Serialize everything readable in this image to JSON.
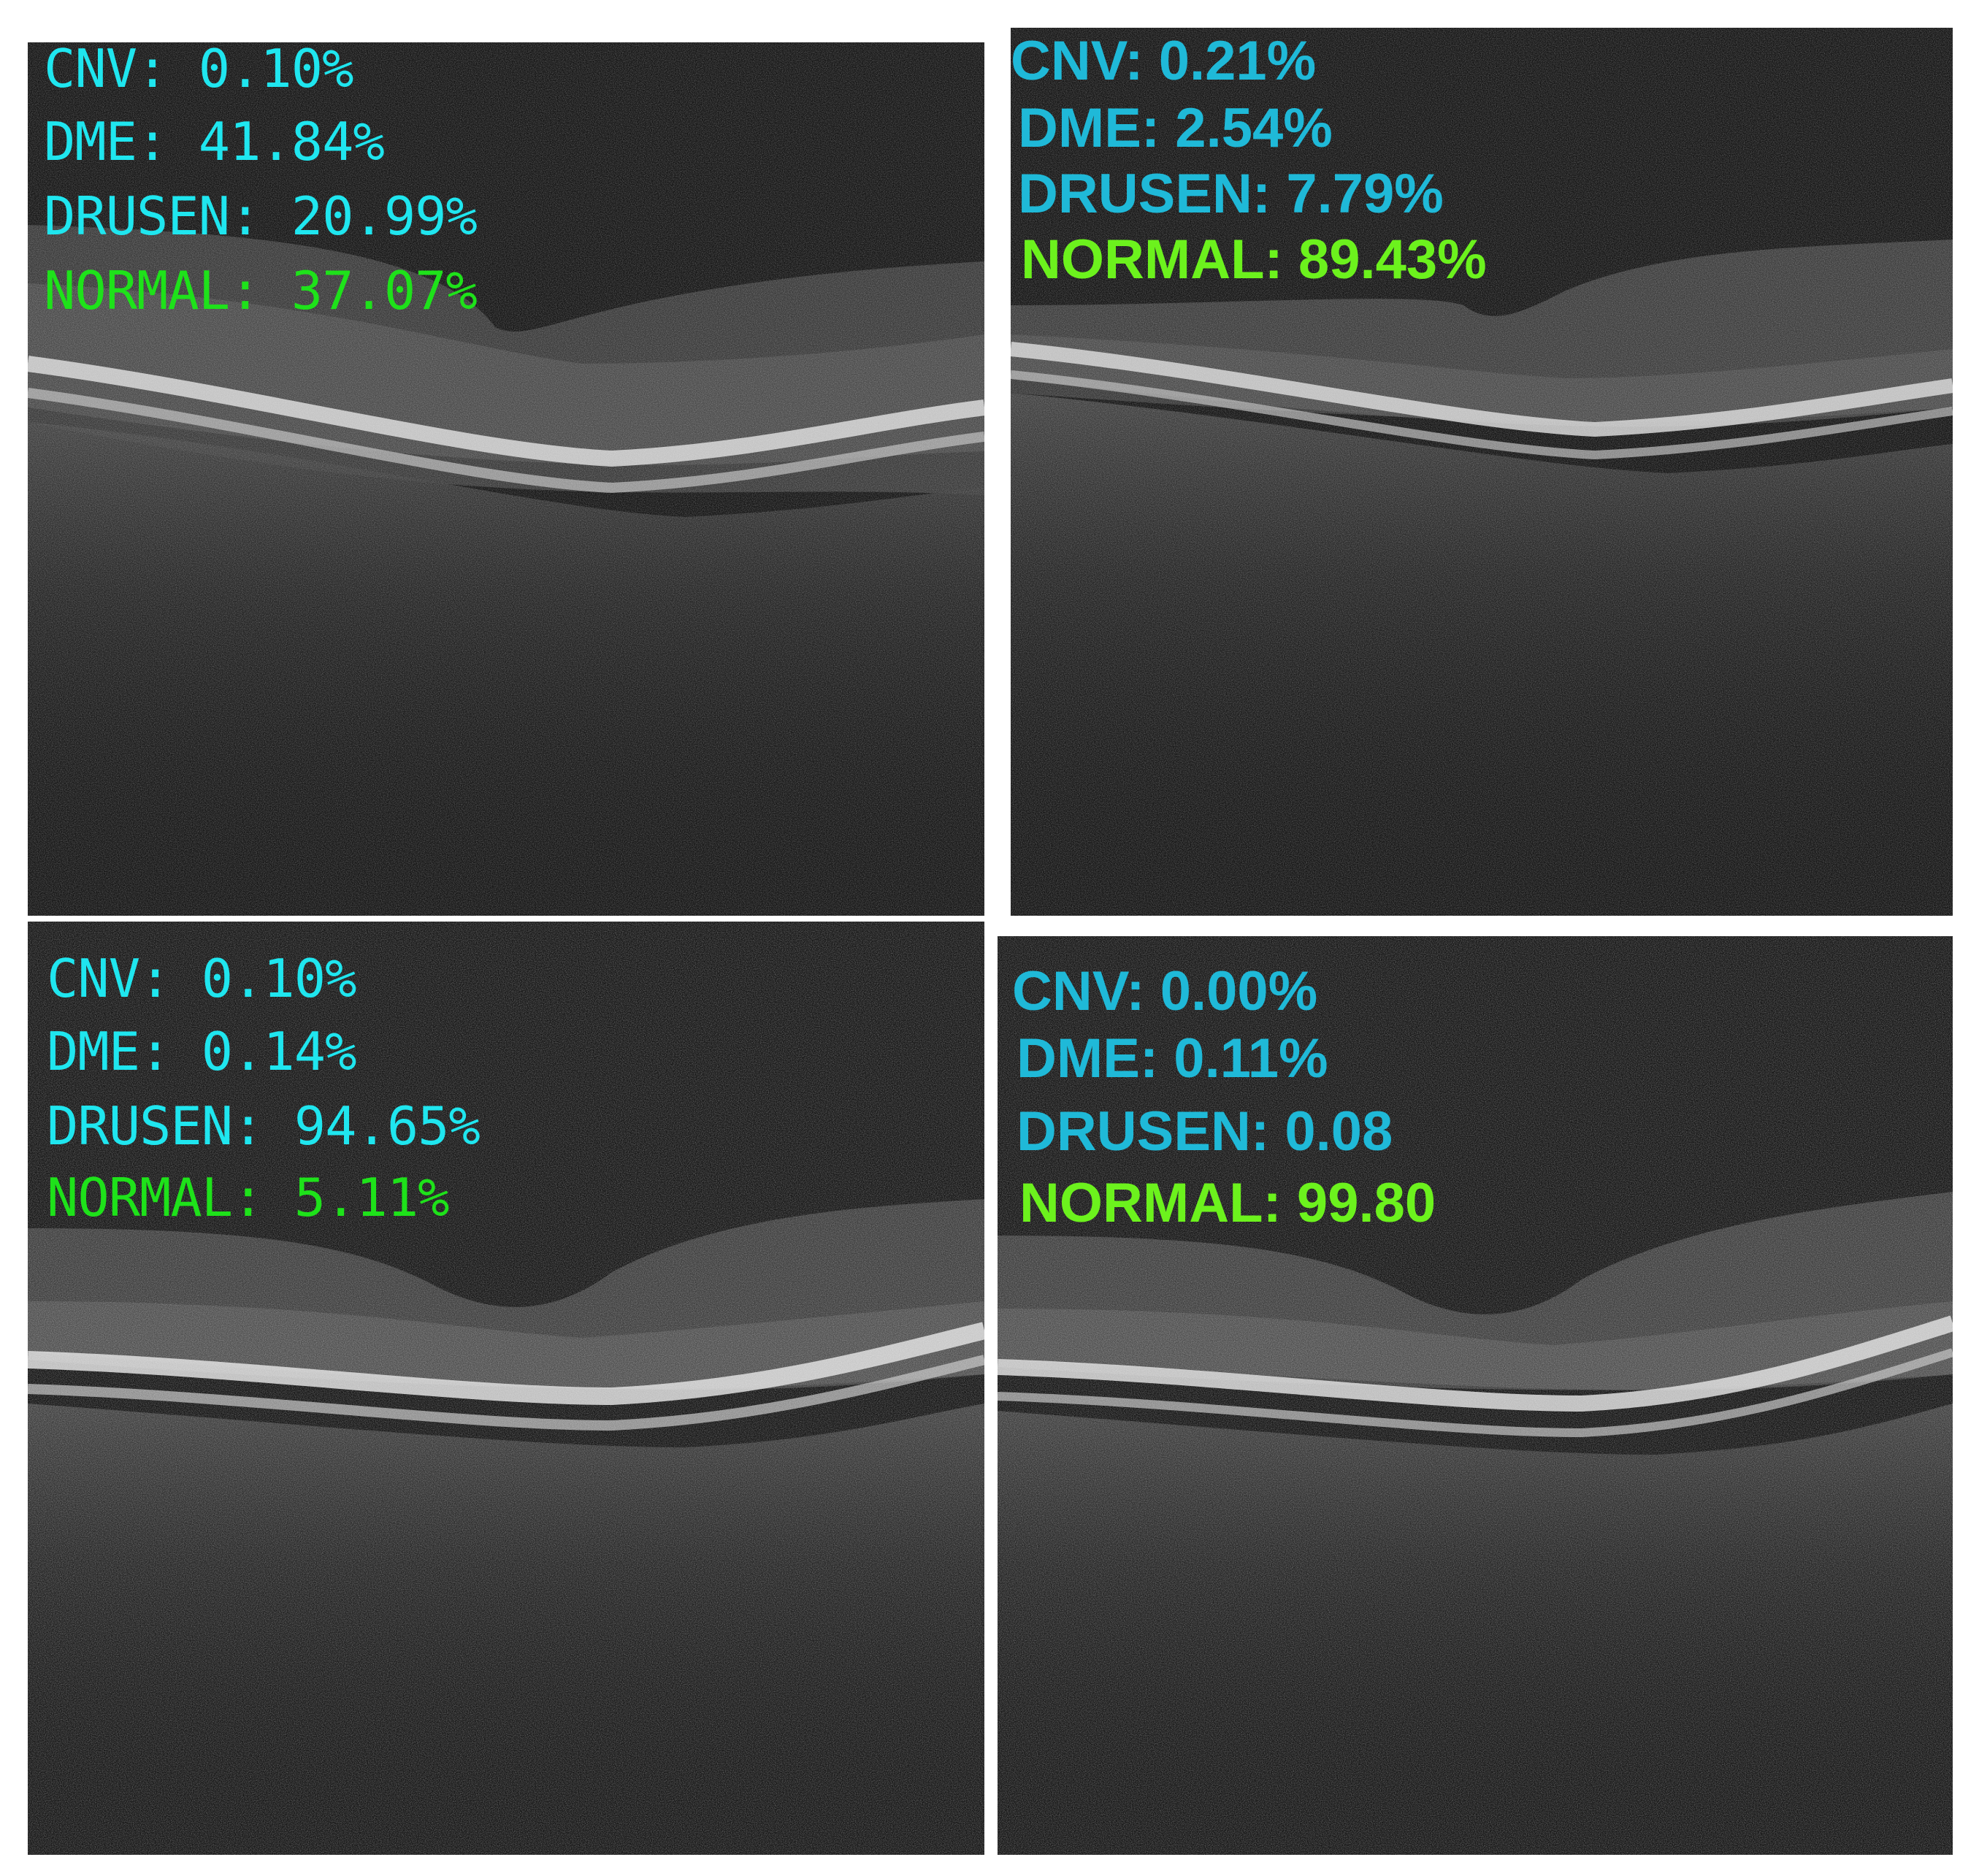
{
  "colors": {
    "cyan_thin": "#1fe6ef",
    "green_thin": "#1ee21a",
    "cyan_bold": "#1fb9d8",
    "green_bold": "#6cf21d",
    "background": "#141414"
  },
  "panels": [
    {
      "lines": [
        {
          "text": "CNV:  0.10%"
        },
        {
          "text": "DME:  41.84%"
        },
        {
          "text": "DRUSEN:  20.99%"
        },
        {
          "text": "NORMAL:  37.07%"
        }
      ]
    },
    {
      "lines": [
        {
          "text": "CNV: 0.21%"
        },
        {
          "text": "DME: 2.54%"
        },
        {
          "text": "DRUSEN: 7.79%"
        },
        {
          "text": "NORMAL: 89.43%"
        }
      ]
    },
    {
      "lines": [
        {
          "text": "CNV:  0.10%"
        },
        {
          "text": "DME:  0.14%"
        },
        {
          "text": "DRUSEN:  94.65%"
        },
        {
          "text": "NORMAL:  5.11%"
        }
      ]
    },
    {
      "lines": [
        {
          "text": "CNV: 0.00%"
        },
        {
          "text": "DME: 0.11%"
        },
        {
          "text": "DRUSEN: 0.08"
        },
        {
          "text": "NORMAL: 99.80"
        }
      ]
    }
  ]
}
